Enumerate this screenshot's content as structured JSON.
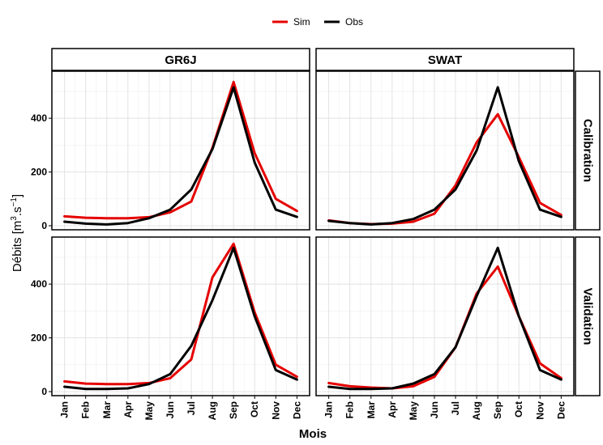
{
  "chart_data": {
    "type": "line",
    "xlabel": "Mois",
    "ylabel": "Débits [m",
    "ylabel_unit_parts": [
      "3",
      ".s",
      "−1",
      "]"
    ],
    "months": [
      "Jan",
      "Feb",
      "Mar",
      "Apr",
      "May",
      "Jun",
      "Jul",
      "Aug",
      "Sep",
      "Oct",
      "Nov",
      "Dec"
    ],
    "ylim": [
      -15,
      575
    ],
    "yticks": [
      0,
      200,
      400
    ],
    "grid": true,
    "legend_position": "top",
    "legend": [
      {
        "name": "Sim",
        "color": "#e60000"
      },
      {
        "name": "Obs",
        "color": "#000000"
      }
    ],
    "columns": [
      "GR6J",
      "SWAT"
    ],
    "rows": [
      "Calibration",
      "Validation"
    ],
    "panels": [
      {
        "model": "GR6J",
        "period": "Calibration",
        "series": [
          {
            "name": "Sim",
            "values": [
              35,
              30,
              28,
              28,
              32,
              50,
              90,
              290,
              535,
              270,
              100,
              55
            ]
          },
          {
            "name": "Obs",
            "values": [
              15,
              8,
              5,
              10,
              28,
              60,
              135,
              285,
              515,
              235,
              60,
              33
            ]
          }
        ]
      },
      {
        "model": "SWAT",
        "period": "Calibration",
        "series": [
          {
            "name": "Sim",
            "values": [
              20,
              10,
              6,
              8,
              15,
              45,
              150,
              310,
              415,
              255,
              85,
              40
            ]
          },
          {
            "name": "Obs",
            "values": [
              18,
              10,
              5,
              10,
              25,
              60,
              135,
              280,
              515,
              240,
              60,
              33
            ]
          }
        ]
      },
      {
        "model": "GR6J",
        "period": "Validation",
        "series": [
          {
            "name": "Sim",
            "values": [
              38,
              30,
              28,
              28,
              32,
              50,
              120,
              425,
              550,
              295,
              100,
              55
            ]
          },
          {
            "name": "Obs",
            "values": [
              18,
              10,
              10,
              12,
              28,
              65,
              170,
              340,
              535,
              280,
              80,
              45
            ]
          }
        ]
      },
      {
        "model": "SWAT",
        "period": "Validation",
        "series": [
          {
            "name": "Sim",
            "values": [
              32,
              20,
              15,
              12,
              20,
              55,
              165,
              365,
              465,
              280,
              105,
              50
            ]
          },
          {
            "name": "Obs",
            "values": [
              18,
              10,
              10,
              12,
              30,
              65,
              165,
              355,
              535,
              280,
              80,
              45
            ]
          }
        ]
      }
    ]
  }
}
